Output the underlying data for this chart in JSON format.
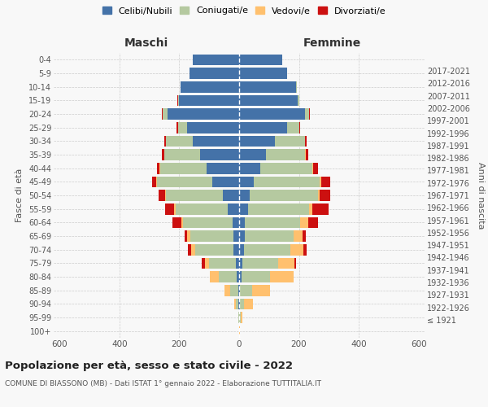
{
  "age_groups": [
    "100+",
    "95-99",
    "90-94",
    "85-89",
    "80-84",
    "75-79",
    "70-74",
    "65-69",
    "60-64",
    "55-59",
    "50-54",
    "45-49",
    "40-44",
    "35-39",
    "30-34",
    "25-29",
    "20-24",
    "15-19",
    "10-14",
    "5-9",
    "0-4"
  ],
  "birth_years": [
    "≤ 1921",
    "1922-1926",
    "1927-1931",
    "1932-1936",
    "1937-1941",
    "1942-1946",
    "1947-1951",
    "1952-1956",
    "1957-1961",
    "1962-1966",
    "1967-1971",
    "1972-1976",
    "1977-1981",
    "1982-1986",
    "1987-1991",
    "1992-1996",
    "1997-2001",
    "2002-2006",
    "2007-2011",
    "2012-2016",
    "2017-2021"
  ],
  "maschi": {
    "celibe": [
      0,
      1,
      2,
      4,
      8,
      10,
      18,
      18,
      22,
      38,
      55,
      90,
      110,
      130,
      155,
      175,
      240,
      200,
      195,
      165,
      155
    ],
    "coniugato": [
      0,
      2,
      8,
      25,
      60,
      90,
      130,
      145,
      165,
      175,
      190,
      185,
      155,
      120,
      90,
      30,
      15,
      5,
      2,
      0,
      0
    ],
    "vedovo": [
      0,
      1,
      6,
      20,
      30,
      15,
      12,
      10,
      5,
      5,
      3,
      2,
      1,
      0,
      0,
      0,
      0,
      0,
      0,
      0,
      0
    ],
    "divorziato": [
      0,
      0,
      0,
      0,
      0,
      10,
      10,
      8,
      30,
      30,
      20,
      15,
      10,
      8,
      5,
      5,
      2,
      1,
      0,
      0,
      0
    ]
  },
  "femmine": {
    "nubile": [
      0,
      1,
      2,
      4,
      8,
      10,
      15,
      18,
      20,
      30,
      35,
      50,
      70,
      90,
      120,
      160,
      220,
      195,
      190,
      160,
      145
    ],
    "coniugata": [
      0,
      4,
      15,
      40,
      95,
      120,
      155,
      165,
      185,
      205,
      230,
      220,
      175,
      130,
      100,
      40,
      15,
      5,
      2,
      0,
      0
    ],
    "vedova": [
      2,
      5,
      30,
      60,
      80,
      55,
      45,
      30,
      25,
      10,
      5,
      5,
      3,
      2,
      1,
      1,
      0,
      0,
      0,
      0,
      0
    ],
    "divorziata": [
      0,
      0,
      0,
      0,
      0,
      5,
      10,
      10,
      35,
      55,
      35,
      30,
      15,
      10,
      5,
      3,
      2,
      1,
      0,
      0,
      0
    ]
  },
  "colors": {
    "celibe": "#4472a8",
    "coniugato": "#b5c9a0",
    "vedovo": "#ffc06e",
    "divorziato": "#cc1010"
  },
  "legend_labels": [
    "Celibi/Nubili",
    "Coniugati/e",
    "Vedovi/e",
    "Divorziati/e"
  ],
  "title": "Popolazione per età, sesso e stato civile - 2022",
  "subtitle": "COMUNE DI BIASSONO (MB) - Dati ISTAT 1° gennaio 2022 - Elaborazione TUTTITALIA.IT",
  "xlabel_left": "Maschi",
  "xlabel_right": "Femmine",
  "ylabel_left": "Fasce di età",
  "ylabel_right": "Anni di nascita",
  "xlim": 620,
  "bg_color": "#f8f8f8",
  "grid_color": "#cccccc"
}
